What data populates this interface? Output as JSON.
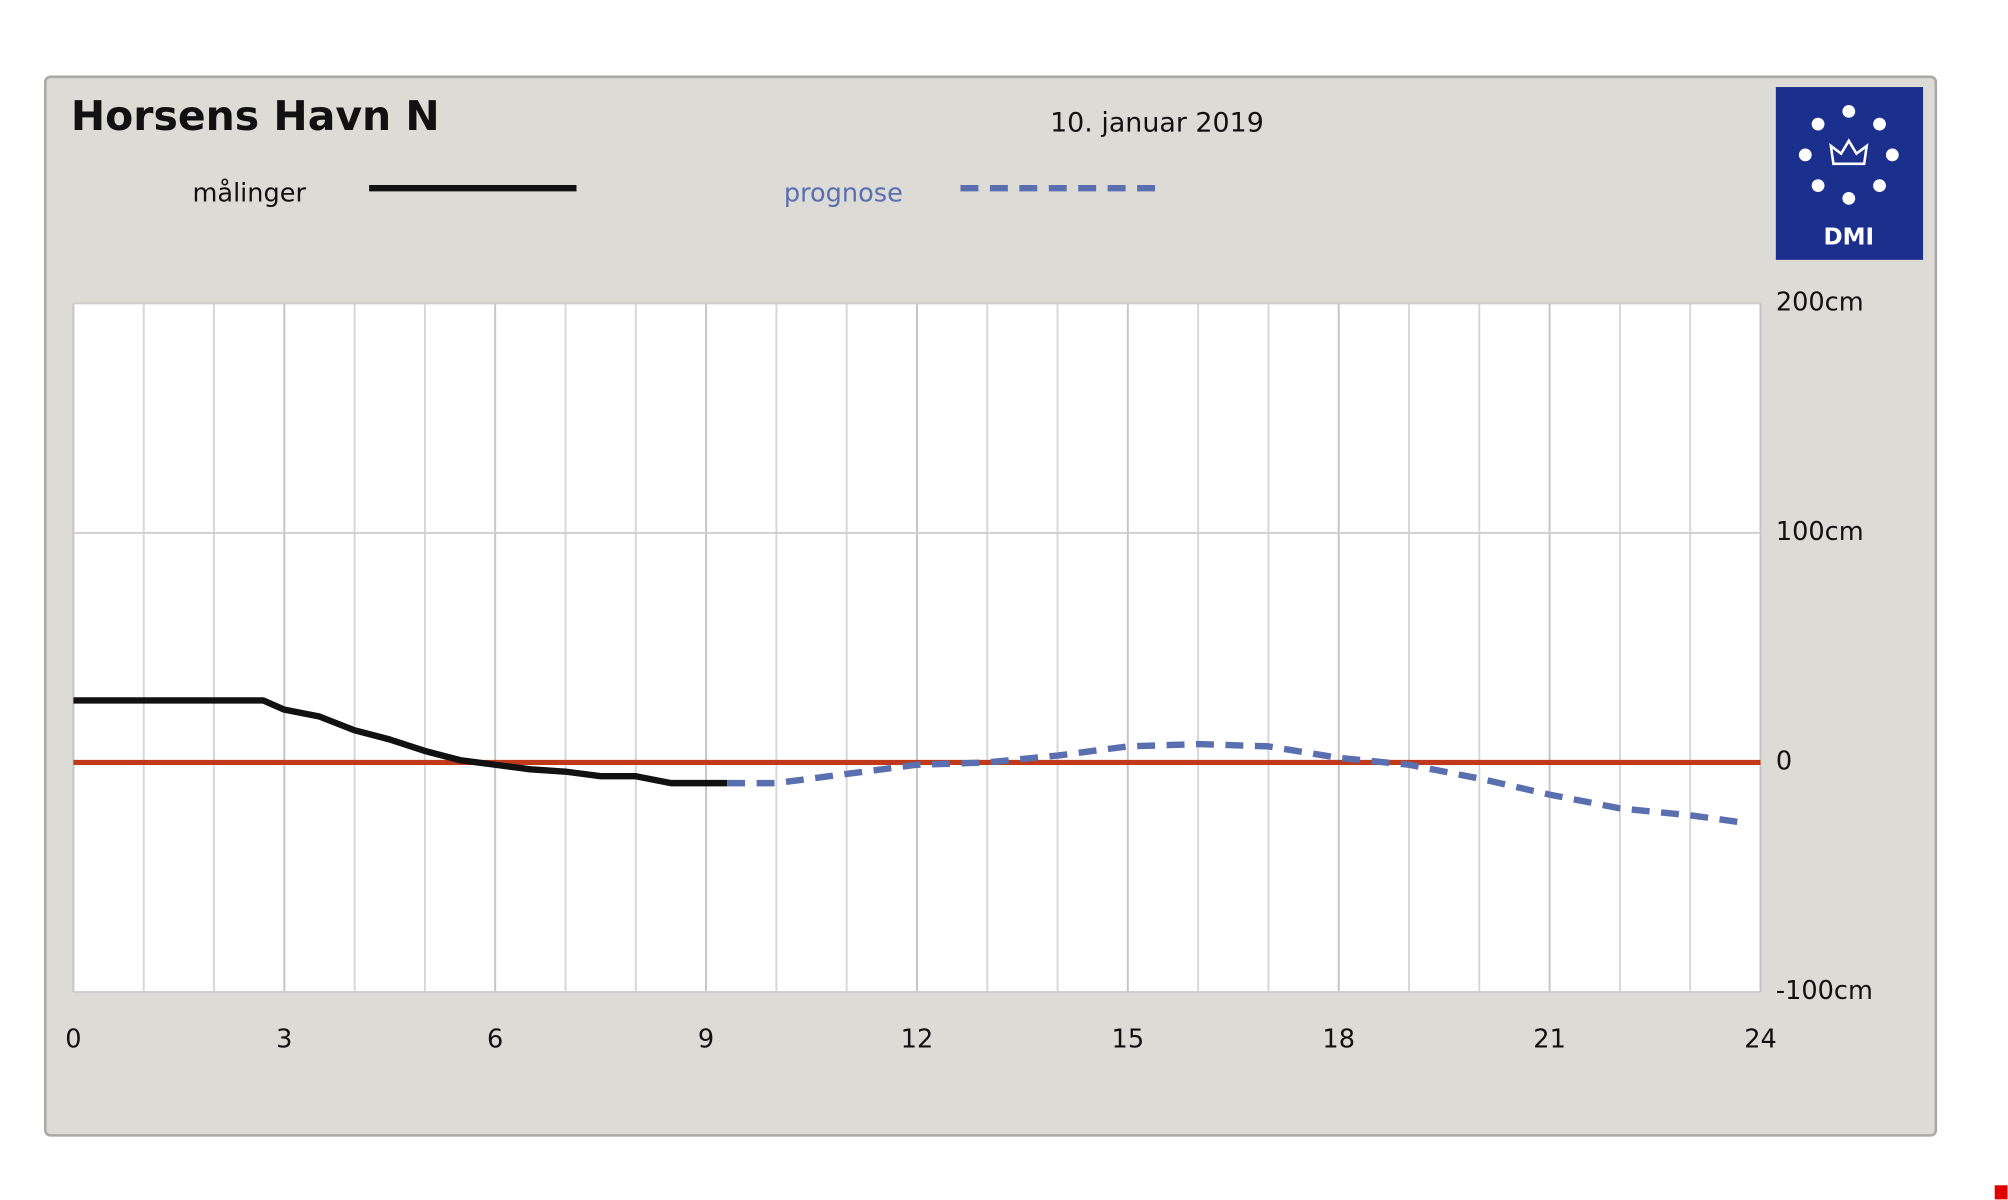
{
  "chart_data": {
    "type": "line",
    "title": "Horsens Havn N",
    "subtitle": "10. januar 2019",
    "logo_text": "DMI",
    "legend_position": "top",
    "xlim": [
      0,
      24
    ],
    "xticks": [
      0,
      3,
      6,
      9,
      12,
      15,
      18,
      21,
      24
    ],
    "ylim": [
      -100,
      200
    ],
    "yticks": [
      {
        "value": 200,
        "label": "200cm"
      },
      {
        "value": 100,
        "label": "100cm"
      },
      0,
      {
        "value": -100,
        "label": "-100cm"
      }
    ],
    "grid": true,
    "zero_line_color": "#c0391b",
    "series": [
      {
        "name": "målinger",
        "color": "#111111",
        "style": "solid",
        "x": [
          0,
          1,
          2,
          2.7,
          3,
          3.5,
          4,
          4.5,
          5,
          5.5,
          6,
          6.5,
          7,
          7.5,
          8,
          8.5,
          9,
          9.3
        ],
        "values": [
          27,
          27,
          27,
          27,
          23,
          20,
          14,
          10,
          5,
          1,
          -1,
          -3,
          -4,
          -6,
          -6,
          -9,
          -9,
          -9
        ]
      },
      {
        "name": "prognose",
        "color": "#5a6fb0",
        "style": "dashed",
        "x": [
          9.3,
          10,
          11,
          12,
          13,
          14,
          15,
          16,
          17,
          18,
          19,
          20,
          21,
          22,
          23,
          23.7
        ],
        "values": [
          -9,
          -9,
          -5,
          -1,
          0,
          3,
          7,
          8,
          7,
          2,
          -1,
          -7,
          -14,
          -20,
          -23,
          -26
        ]
      }
    ]
  }
}
